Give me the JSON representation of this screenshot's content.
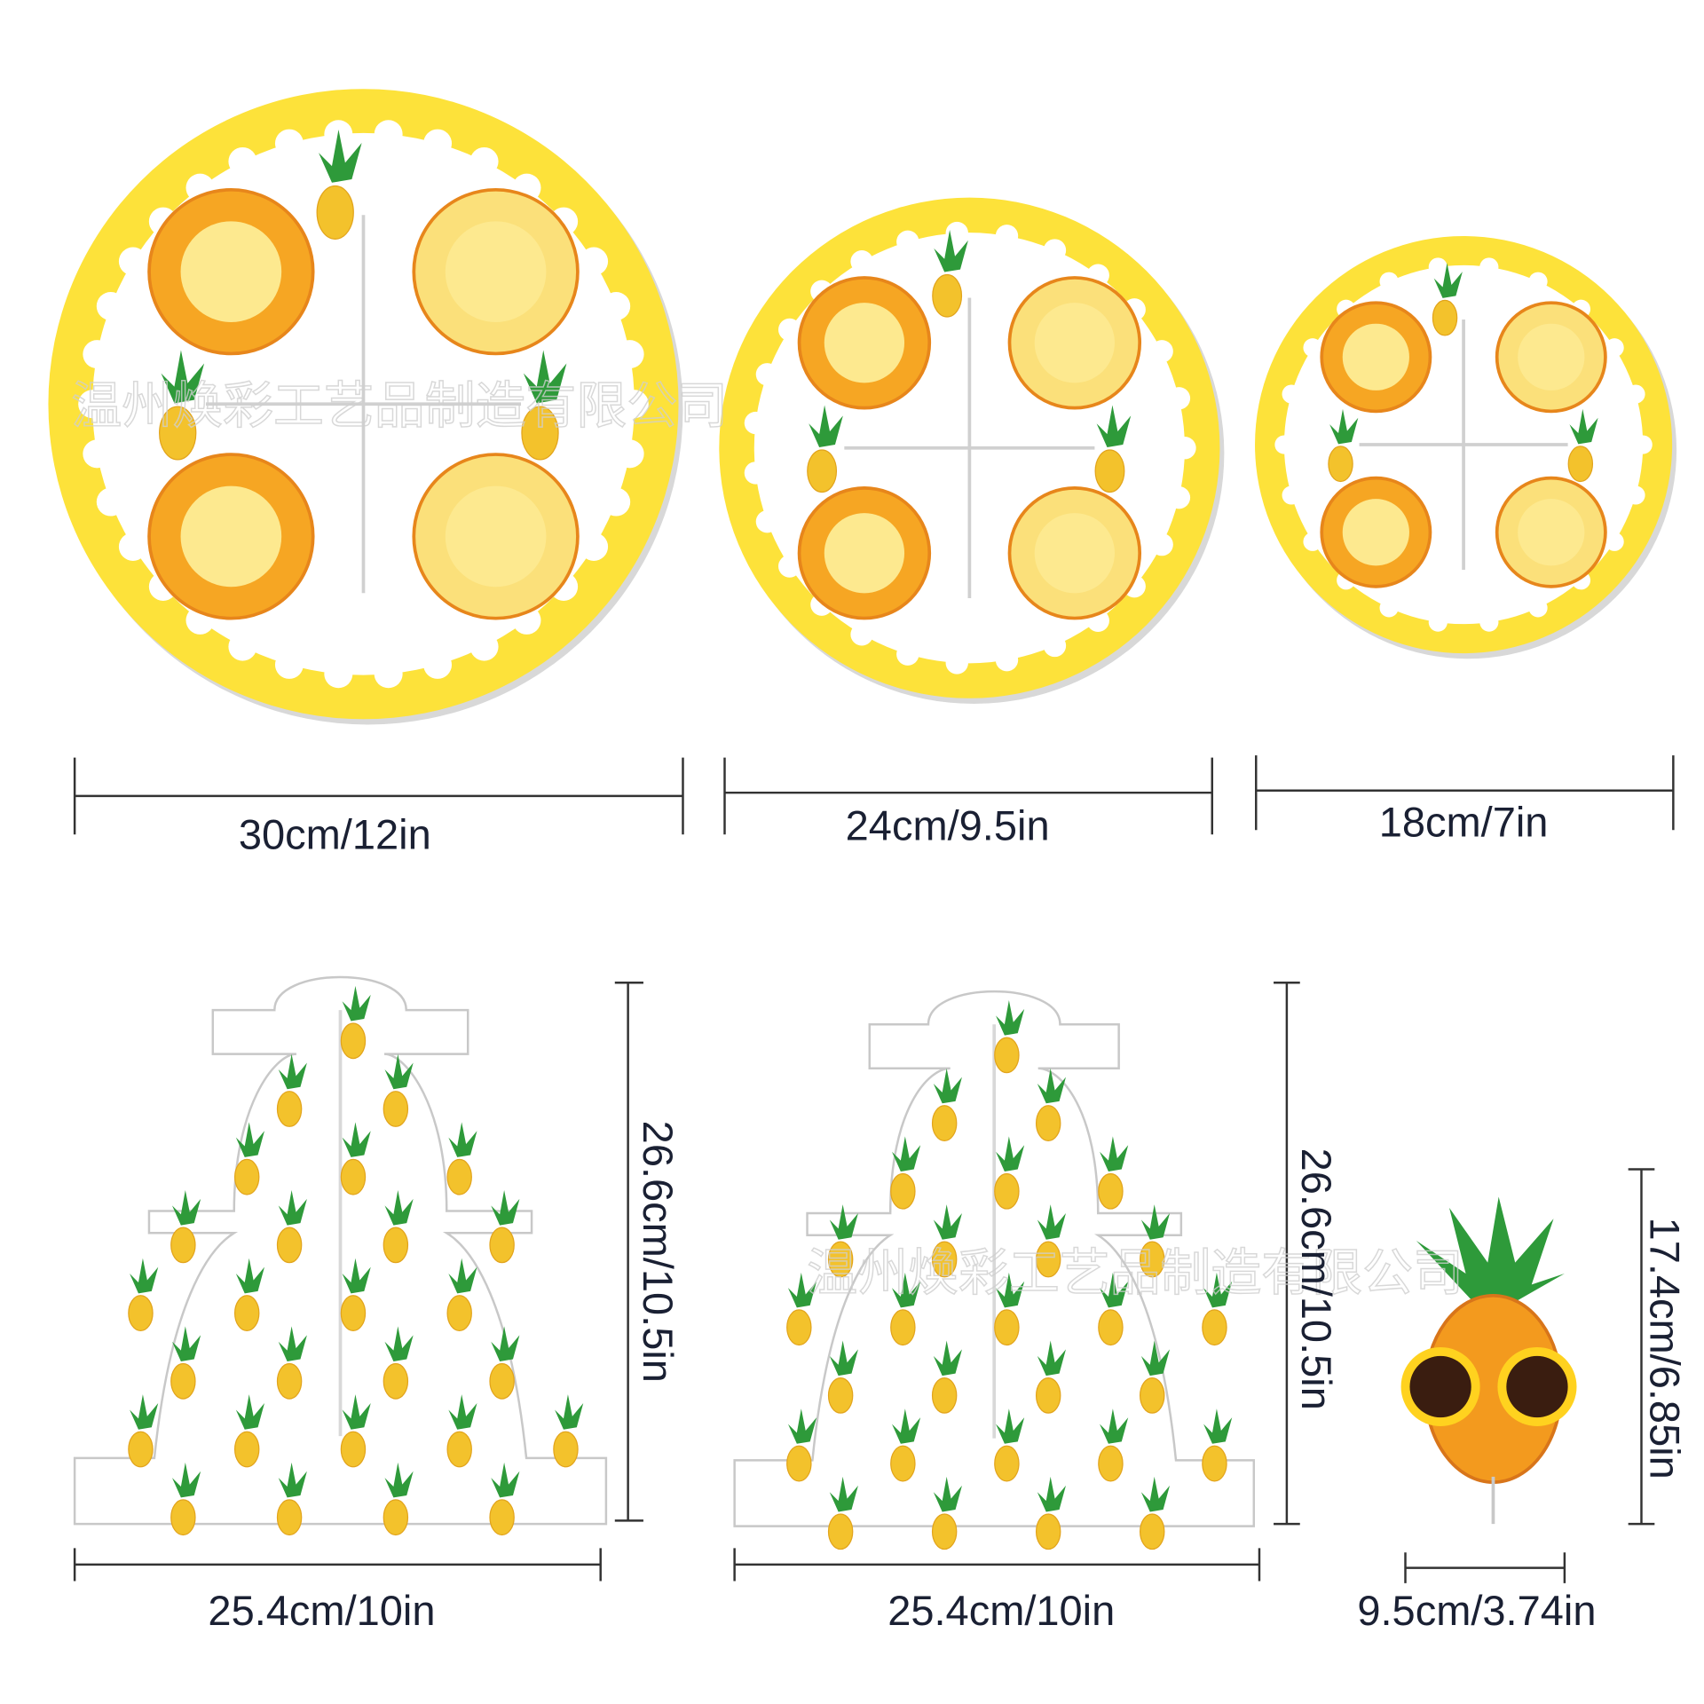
{
  "plates": [
    {
      "size": "30cm/12in"
    },
    {
      "size": "24cm/9.5in"
    },
    {
      "size": "18cm/7in"
    }
  ],
  "stands": [
    {
      "width": "25.4cm/10in",
      "height": "26.6cm/10.5in"
    },
    {
      "width": "25.4cm/10in",
      "height": "26.6cm/10.5in"
    },
    {
      "width": "9.5cm/3.74in",
      "height": "17.4cm/6.85in"
    }
  ],
  "watermark": [
    "温州焕彩工艺品制造有限公司",
    "温州焕彩工艺品制造有限公司"
  ]
}
